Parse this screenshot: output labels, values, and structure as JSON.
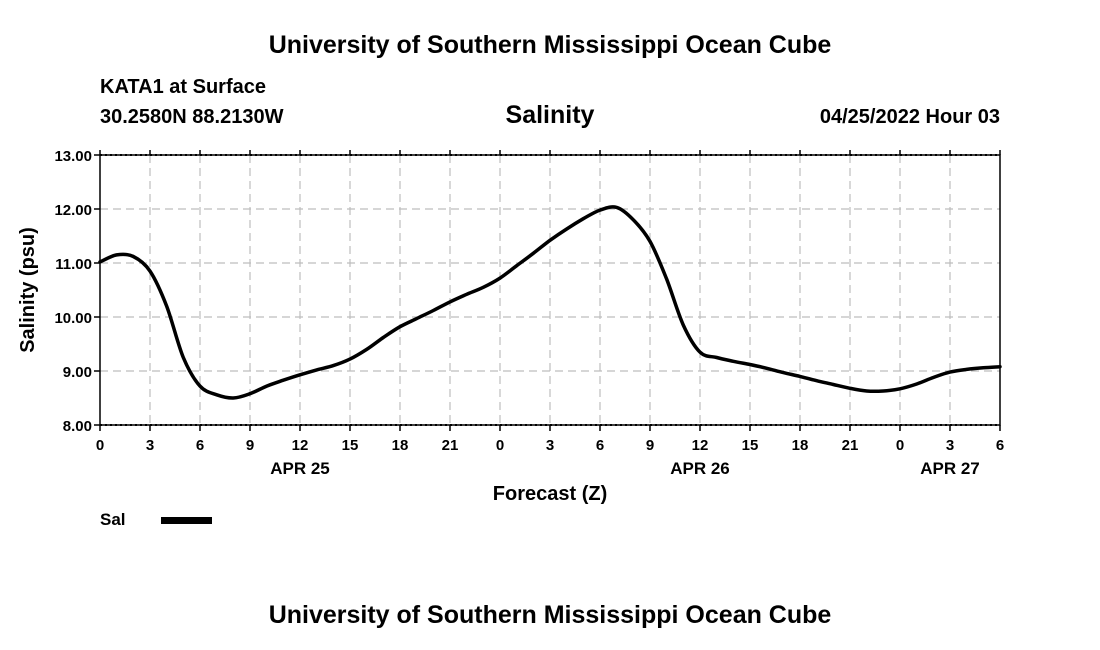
{
  "header": {
    "title": "University of Southern Mississippi Ocean Cube",
    "station": "KATA1 at Surface",
    "coordinates": "30.2580N  88.2130W",
    "chart_title": "Salinity",
    "datetime": "04/25/2022 Hour 03"
  },
  "legend": {
    "label": "Sal"
  },
  "footer": {
    "title": "University of Southern Mississippi Ocean Cube"
  },
  "chart_data": {
    "type": "line",
    "title": "Salinity",
    "xlabel": "Forecast (Z)",
    "ylabel": "Salinity (psu)",
    "xlim": [
      0,
      54
    ],
    "ylim": [
      8.0,
      13.0
    ],
    "grid": true,
    "legend_position": "bottom-left",
    "x_tick_labels": [
      "0",
      "3",
      "6",
      "9",
      "12",
      "15",
      "18",
      "21",
      "0",
      "3",
      "6",
      "9",
      "12",
      "15",
      "18",
      "21",
      "0",
      "3",
      "6"
    ],
    "y_tick_labels": [
      "8.00",
      "9.00",
      "10.00",
      "11.00",
      "12.00",
      "13.00"
    ],
    "date_labels": [
      {
        "label": "APR 25",
        "hour": 12
      },
      {
        "label": "APR 26",
        "hour": 36
      },
      {
        "label": "APR 27",
        "hour": 51
      }
    ],
    "series": [
      {
        "name": "Sal",
        "color": "#000000",
        "x": [
          0,
          1,
          2,
          3,
          4,
          5,
          6,
          7,
          8,
          9,
          10,
          11,
          12,
          13,
          14,
          15,
          16,
          17,
          18,
          19,
          20,
          21,
          22,
          23,
          24,
          25,
          26,
          27,
          28,
          29,
          30,
          31,
          32,
          33,
          34,
          35,
          36,
          37,
          38,
          39,
          40,
          41,
          42,
          43,
          44,
          45,
          46,
          47,
          48,
          49,
          50,
          51,
          52,
          53,
          54
        ],
        "values": [
          11.02,
          11.15,
          11.12,
          10.85,
          10.2,
          9.25,
          8.72,
          8.56,
          8.5,
          8.58,
          8.72,
          8.83,
          8.93,
          9.02,
          9.1,
          9.22,
          9.4,
          9.62,
          9.82,
          9.97,
          10.12,
          10.28,
          10.42,
          10.55,
          10.72,
          10.95,
          11.18,
          11.42,
          11.63,
          11.82,
          11.98,
          12.03,
          11.8,
          11.4,
          10.7,
          9.85,
          9.35,
          9.25,
          9.18,
          9.12,
          9.05,
          8.97,
          8.9,
          8.82,
          8.75,
          8.68,
          8.63,
          8.63,
          8.67,
          8.76,
          8.88,
          8.98,
          9.03,
          9.06,
          9.08
        ]
      }
    ]
  }
}
